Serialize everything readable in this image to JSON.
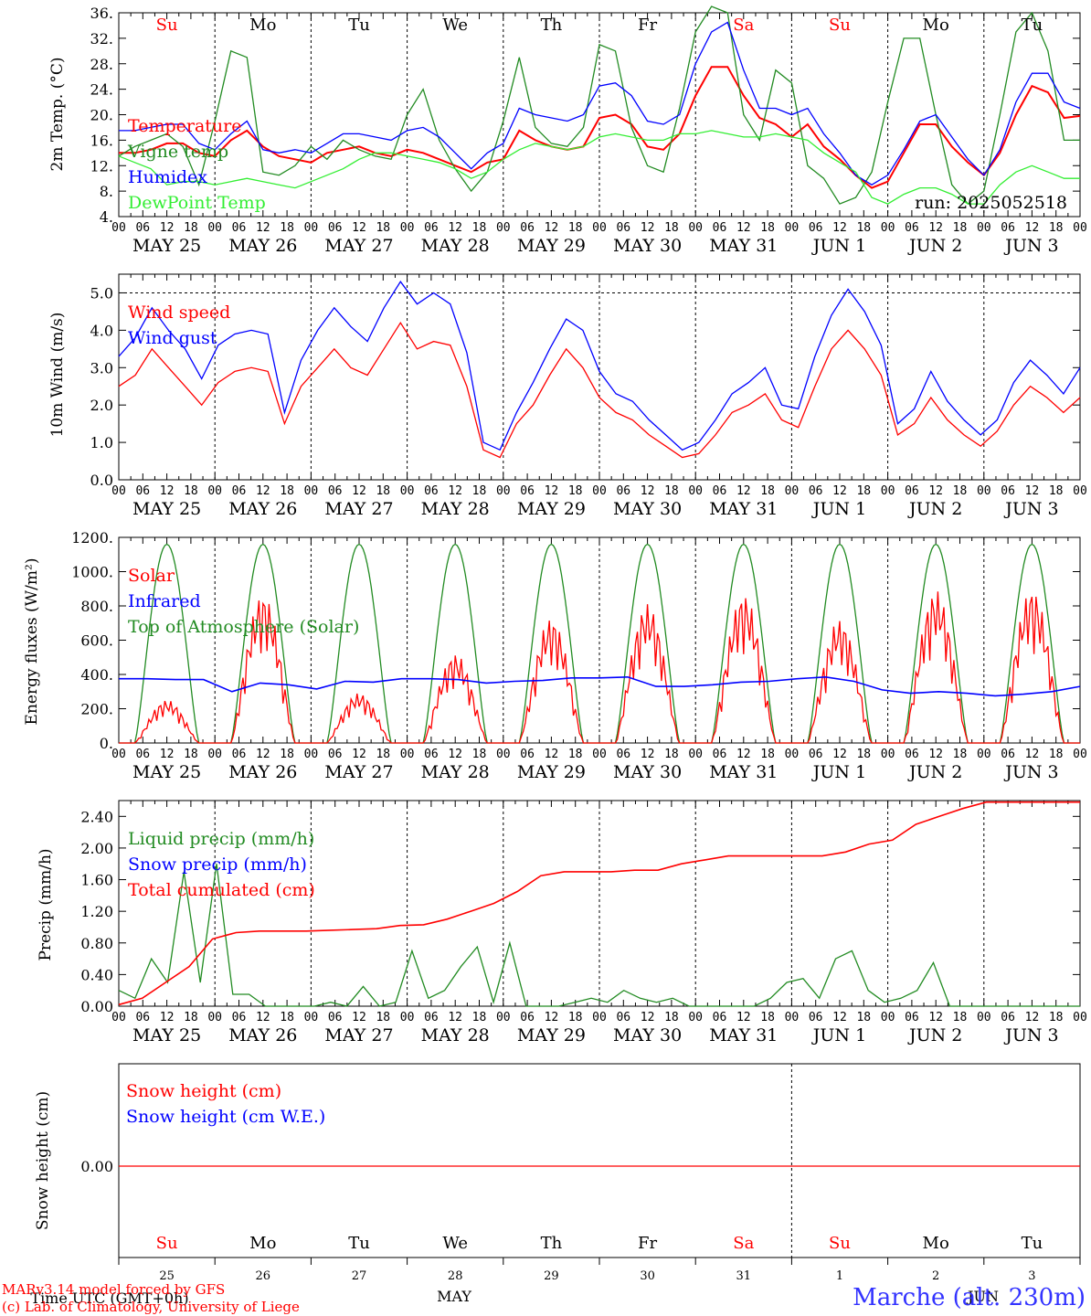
{
  "chart_data": [
    {
      "type": "line",
      "ylabel": "2m Temp. (°C)",
      "ylim": [
        4,
        36
      ],
      "y_ticks": [
        "4.",
        "8.",
        "12.",
        "16.",
        "20.",
        "24.",
        "28.",
        "32.",
        "36."
      ],
      "x_time": {
        "start": "2025-05-25 00 UTC",
        "days": 10,
        "hours_per_tick": 6
      },
      "hour_labels": [
        "00",
        "06",
        "12",
        "18"
      ],
      "date_labels": [
        "MAY 25",
        "MAY 26",
        "MAY 27",
        "MAY 28",
        "MAY 29",
        "MAY 30",
        "MAY 31",
        "JUN  1",
        "JUN  2",
        "JUN  3"
      ],
      "weekdays": [
        "Su",
        "Mo",
        "Tu",
        "We",
        "Th",
        "Fr",
        "Sa",
        "Su",
        "Mo",
        "Tu"
      ],
      "weekday_colors": [
        "#ff0000",
        "#000000",
        "#000000",
        "#000000",
        "#000000",
        "#000000",
        "#ff0000",
        "#ff0000",
        "#000000",
        "#000000"
      ],
      "annotation": "run: 2025052518",
      "series": [
        {
          "name": "Temperature",
          "color": "#ff0000",
          "values": [
            14,
            14,
            14.5,
            15.5,
            15.5,
            14,
            13.5,
            16,
            17.5,
            15,
            13.5,
            13,
            12.5,
            14,
            14.5,
            15,
            14,
            13.5,
            14.5,
            14,
            13,
            12,
            11,
            12.5,
            13,
            17.5,
            16,
            15,
            14.5,
            15,
            19.5,
            20,
            18.5,
            15,
            14.5,
            17,
            23,
            27.5,
            27.5,
            23,
            19.5,
            18.5,
            16.5,
            18.5,
            15,
            13,
            10.5,
            8.5,
            9.5,
            14,
            18.5,
            18.5,
            15,
            12.5,
            10.5,
            14,
            20,
            24.5,
            23.5,
            19.5,
            19.8
          ]
        },
        {
          "name": "Vigne temp",
          "color": "#228B22",
          "values": [
            13.5,
            15,
            16,
            17,
            15,
            9,
            19,
            30,
            29,
            11,
            10.5,
            12,
            15,
            13,
            16,
            14.5,
            13.5,
            13,
            20,
            24,
            16,
            11.5,
            8,
            11,
            19,
            29,
            18,
            15.5,
            15,
            18,
            31,
            30,
            18,
            12,
            11,
            21,
            33,
            37,
            36,
            20,
            16,
            27,
            25,
            12,
            10,
            6,
            7,
            11,
            22,
            32,
            32,
            20,
            9,
            6,
            8,
            20,
            33,
            36,
            30,
            16,
            16
          ]
        },
        {
          "name": "Humidex",
          "color": "#0000ff",
          "values": [
            17.5,
            17.5,
            18,
            18.5,
            18.5,
            15.5,
            14.5,
            17,
            19,
            14.5,
            14,
            14.5,
            14,
            15.5,
            17,
            17,
            16.5,
            16,
            17.5,
            18,
            16.5,
            14,
            11.5,
            14,
            15.5,
            21,
            20,
            19.5,
            19,
            20,
            24.5,
            25,
            23,
            19,
            18.5,
            20,
            28,
            33,
            34.5,
            27,
            21,
            21,
            20,
            21,
            17,
            14,
            10.5,
            9,
            10.5,
            14.5,
            19,
            20,
            16.5,
            13,
            10.5,
            14.5,
            22,
            26.5,
            26.5,
            22,
            21
          ]
        },
        {
          "name": "DewPoint Temp",
          "color": "#33ee33",
          "values": [
            13.5,
            12.5,
            11.5,
            9,
            9.5,
            9.5,
            9,
            9.5,
            10,
            9.5,
            9,
            8.5,
            9.5,
            10.5,
            11.5,
            13,
            14,
            14,
            13.5,
            13,
            12.5,
            11.5,
            10,
            11,
            13,
            14.5,
            15.5,
            15,
            14.5,
            15,
            16.5,
            17,
            16.5,
            16,
            16,
            17,
            17,
            17.5,
            17,
            16.5,
            16.5,
            17,
            16.5,
            16,
            14,
            12.5,
            11,
            7,
            6,
            7.5,
            8.5,
            8.5,
            7.5,
            6,
            6,
            9,
            11,
            12,
            11,
            10,
            10
          ]
        }
      ]
    },
    {
      "type": "line",
      "ylabel": "10m Wind (m/s)",
      "ylim": [
        0,
        5.5
      ],
      "y_ticks": [
        "0.0",
        "1.0",
        "2.0",
        "3.0",
        "4.0",
        "5.0"
      ],
      "dashed_level": 5.0,
      "date_labels": [
        "MAY 25",
        "MAY 26",
        "MAY 27",
        "MAY 28",
        "MAY 29",
        "MAY 30",
        "MAY 31",
        "JUN  1",
        "JUN  2",
        "JUN  3"
      ],
      "series": [
        {
          "name": "Wind speed",
          "color": "#ff0000",
          "values": [
            2.5,
            2.8,
            3.5,
            3.0,
            2.5,
            2.0,
            2.6,
            2.9,
            3.0,
            2.9,
            1.5,
            2.5,
            3.0,
            3.5,
            3.0,
            2.8,
            3.5,
            4.2,
            3.5,
            3.7,
            3.6,
            2.5,
            0.8,
            0.6,
            1.5,
            2.0,
            2.8,
            3.5,
            3.0,
            2.2,
            1.8,
            1.6,
            1.2,
            0.9,
            0.6,
            0.7,
            1.2,
            1.8,
            2.0,
            2.3,
            1.6,
            1.4,
            2.5,
            3.5,
            4.0,
            3.5,
            2.8,
            1.2,
            1.5,
            2.2,
            1.6,
            1.2,
            0.9,
            1.3,
            2.0,
            2.5,
            2.2,
            1.8,
            2.2
          ]
        },
        {
          "name": "Wind gust",
          "color": "#0000ff",
          "values": [
            3.3,
            3.8,
            4.6,
            4.0,
            3.5,
            2.7,
            3.6,
            3.9,
            4.0,
            3.9,
            1.8,
            3.2,
            4.0,
            4.6,
            4.1,
            3.7,
            4.6,
            5.3,
            4.7,
            5.0,
            4.7,
            3.4,
            1.0,
            0.8,
            1.8,
            2.6,
            3.5,
            4.3,
            4.0,
            2.9,
            2.3,
            2.1,
            1.6,
            1.2,
            0.8,
            1.0,
            1.6,
            2.3,
            2.6,
            3.0,
            2.0,
            1.9,
            3.3,
            4.4,
            5.1,
            4.5,
            3.6,
            1.5,
            1.9,
            2.9,
            2.1,
            1.6,
            1.2,
            1.6,
            2.6,
            3.2,
            2.8,
            2.3,
            3.0
          ]
        }
      ]
    },
    {
      "type": "line",
      "ylabel": "Energy fluxes (W/m²)",
      "ylim": [
        0,
        1200
      ],
      "y_ticks": [
        "0.",
        "200.",
        "400.",
        "600.",
        "800.",
        "1000.",
        "1200."
      ],
      "date_labels": [
        "MAY 25",
        "MAY 26",
        "MAY 27",
        "MAY 28",
        "MAY 29",
        "MAY 30",
        "MAY 31",
        "JUN  1",
        "JUN  2",
        "JUN  3"
      ],
      "series": [
        {
          "name": "Solar",
          "color": "#ff0000",
          "daily_peak": [
            250,
            870,
            290,
            520,
            730,
            810,
            870,
            720,
            890,
            900
          ]
        },
        {
          "name": "Infrared",
          "color": "#0000ff",
          "values": [
            375,
            375,
            370,
            370,
            300,
            350,
            340,
            315,
            360,
            355,
            375,
            375,
            370,
            350,
            360,
            365,
            380,
            380,
            385,
            330,
            330,
            340,
            355,
            360,
            375,
            385,
            360,
            310,
            290,
            300,
            290,
            275,
            285,
            300,
            330
          ]
        },
        {
          "name": "Top of Atmosphere (Solar)",
          "color": "#228B22",
          "daily_peak": [
            1160,
            1160,
            1160,
            1160,
            1160,
            1160,
            1160,
            1160,
            1160,
            1160
          ]
        }
      ]
    },
    {
      "type": "line",
      "ylabel": "Precip (mm/h)",
      "ylim": [
        0,
        2.6
      ],
      "y_ticks": [
        "0.00",
        "0.40",
        "0.80",
        "1.20",
        "1.60",
        "2.00",
        "2.40"
      ],
      "date_labels": [
        "MAY 25",
        "MAY 26",
        "MAY 27",
        "MAY 28",
        "MAY 29",
        "MAY 30",
        "MAY 31",
        "JUN  1",
        "JUN  2",
        "JUN  3"
      ],
      "series": [
        {
          "name": "Liquid precip (mm/h)",
          "color": "#228B22",
          "values": [
            0.2,
            0.1,
            0.6,
            0.3,
            1.7,
            0.3,
            1.8,
            0.15,
            0.15,
            0,
            0,
            0,
            0,
            0.05,
            0,
            0.25,
            0,
            0.05,
            0.7,
            0.1,
            0.2,
            0.5,
            0.75,
            0.05,
            0.8,
            0,
            0,
            0,
            0.05,
            0.1,
            0.05,
            0.2,
            0.1,
            0.05,
            0.1,
            0,
            0,
            0,
            0,
            0,
            0.1,
            0.3,
            0.35,
            0.1,
            0.6,
            0.7,
            0.2,
            0.05,
            0.1,
            0.2,
            0.55,
            0,
            0,
            0,
            0,
            0,
            0,
            0,
            0,
            0
          ]
        },
        {
          "name": "Snow precip (mm/h)",
          "color": "#0000ff",
          "values": [
            0,
            0,
            0,
            0,
            0,
            0,
            0,
            0,
            0,
            0
          ]
        },
        {
          "name": "Total cumulated (cm)",
          "color": "#ff0000",
          "values": [
            0.02,
            0.1,
            0.3,
            0.5,
            0.85,
            0.93,
            0.95,
            0.95,
            0.95,
            0.96,
            0.97,
            0.98,
            1.02,
            1.03,
            1.1,
            1.2,
            1.3,
            1.45,
            1.65,
            1.7,
            1.7,
            1.7,
            1.72,
            1.72,
            1.8,
            1.85,
            1.9,
            1.9,
            1.9,
            1.9,
            1.9,
            1.95,
            2.05,
            2.1,
            2.3,
            2.4,
            2.5,
            2.58,
            2.58,
            2.58,
            2.58,
            2.58
          ]
        }
      ]
    },
    {
      "type": "line",
      "ylabel": "Snow height (cm)",
      "y_ticks": [
        "0.00"
      ],
      "series": [
        {
          "name": "Snow height (cm)",
          "color": "#ff0000",
          "values": [
            0,
            0
          ]
        },
        {
          "name": "Snow height (cm W.E.)",
          "color": "#0000ff",
          "values": []
        }
      ],
      "bottom_days": [
        "25",
        "26",
        "27",
        "28",
        "29",
        "30",
        "31",
        "1",
        "2",
        "3"
      ],
      "xlabel": "Time UTC (GMT+0h)",
      "month_labels": [
        "MAY",
        "JUN"
      ]
    }
  ],
  "footer": {
    "credit1": "MARv3.14 model forced by GFS",
    "credit2": "(c) Lab. of Climatology, University of Liege",
    "site": "Marche (alt. 230m)"
  }
}
